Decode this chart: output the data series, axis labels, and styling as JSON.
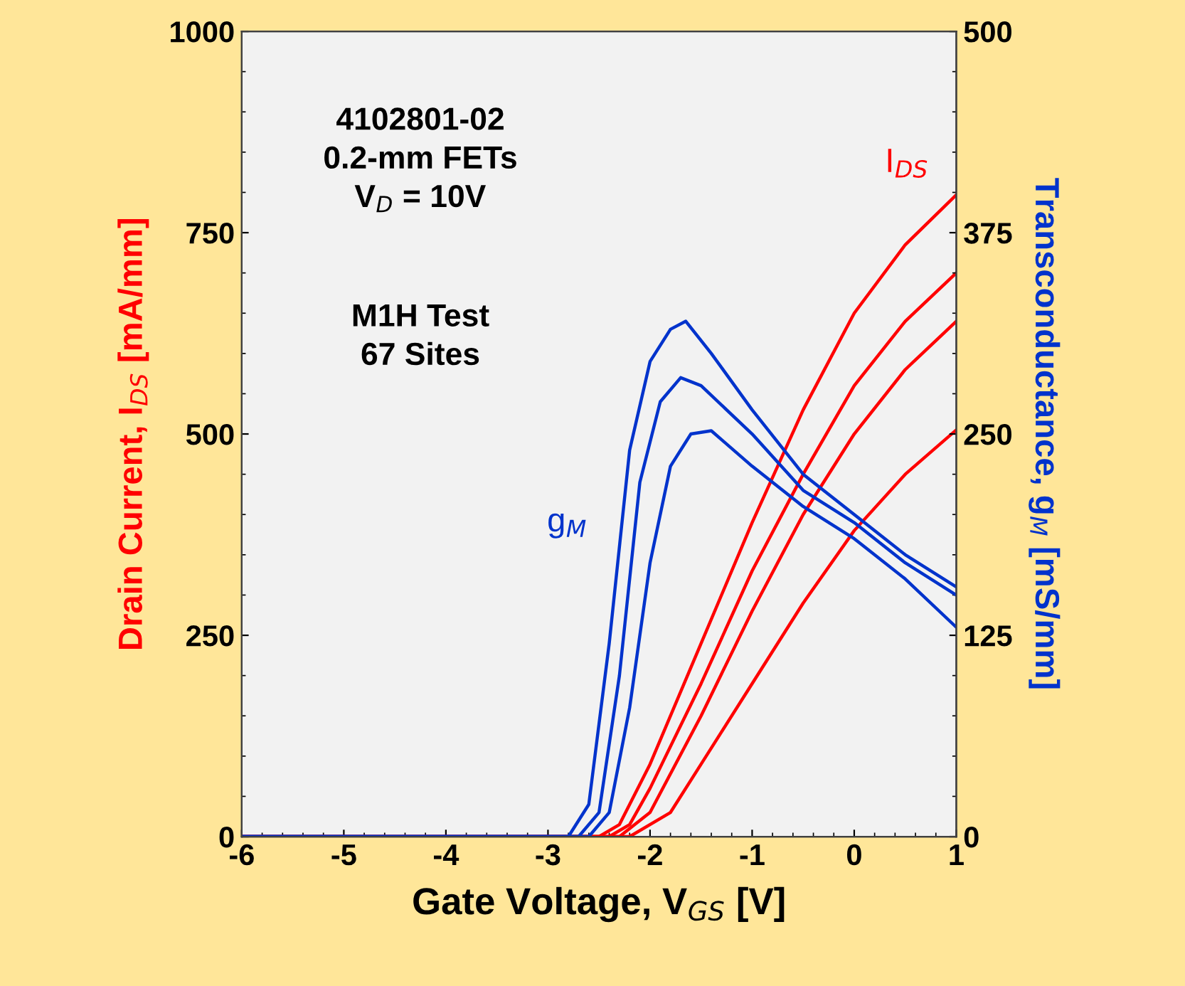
{
  "chart_data": {
    "type": "line",
    "xlabel": "Gate Voltage, V$_{GS}$ [V]",
    "ylabel": "Drain Current, I$_{DS}$ [mA/mm]",
    "y2label": "Transconductance, g$_{M}$ [mS/mm]",
    "annotations": [
      "4102801-02\n0.2-mm FETs\nV$_{D}$ = 10V",
      "M1H Test\n67 Sites"
    ],
    "xlim": [
      -6,
      1
    ],
    "xticks": [
      -6,
      -5,
      -4,
      -3,
      -2,
      -1,
      0,
      1
    ],
    "ylim": [
      0,
      1000
    ],
    "yticks": [
      0,
      250,
      500,
      750,
      1000
    ],
    "y2lim": [
      0,
      500
    ],
    "y2ticks": [
      0,
      125,
      250,
      375,
      500
    ],
    "grid": false,
    "legend": false,
    "marker": "none",
    "line_style": "solid",
    "series": [
      {
        "name": "I$_{DS}$",
        "color": "#ff0000",
        "x": [
          -6,
          -2.5,
          -2.3,
          -2,
          -1.5,
          -1,
          -0.5,
          0,
          0.5,
          1
        ],
        "values": [
          0,
          0,
          15,
          90,
          240,
          390,
          530,
          650,
          735,
          797
        ]
      },
      {
        "color": "#ff0000",
        "x": [
          -6,
          -2.4,
          -2.2,
          -2,
          -1.5,
          -1,
          -0.5,
          0,
          0.5,
          1
        ],
        "values": [
          0,
          0,
          15,
          60,
          190,
          330,
          450,
          560,
          640,
          700
        ]
      },
      {
        "color": "#ff0000",
        "x": [
          -6,
          -2.3,
          -2,
          -1.5,
          -1,
          -0.5,
          0,
          0.5,
          1
        ],
        "values": [
          0,
          0,
          30,
          150,
          280,
          400,
          500,
          580,
          640
        ]
      },
      {
        "color": "#ff0000",
        "x": [
          -6,
          -2.2,
          -1.8,
          -1.5,
          -1,
          -0.5,
          0,
          0.5,
          1
        ],
        "values": [
          0,
          0,
          30,
          90,
          190,
          290,
          380,
          450,
          505
        ]
      },
      {
        "name": "g$_{M}$",
        "color": "#0033cc",
        "axis": "y2",
        "x": [
          -6,
          -2.8,
          -2.6,
          -2.4,
          -2.2,
          -2,
          -1.8,
          -1.65,
          -1.4,
          -1,
          -0.5,
          0,
          0.5,
          1
        ],
        "values": [
          0,
          0,
          20,
          120,
          240,
          295,
          315,
          320,
          300,
          265,
          225,
          200,
          175,
          155
        ]
      },
      {
        "color": "#0033cc",
        "axis": "y2",
        "x": [
          -6,
          -2.7,
          -2.5,
          -2.3,
          -2.1,
          -1.9,
          -1.7,
          -1.5,
          -1,
          -0.5,
          0,
          0.5,
          1
        ],
        "values": [
          0,
          0,
          15,
          100,
          220,
          270,
          285,
          280,
          250,
          215,
          195,
          170,
          150
        ]
      },
      {
        "color": "#0033cc",
        "axis": "y2",
        "x": [
          -6,
          -2.6,
          -2.4,
          -2.2,
          -2,
          -1.8,
          -1.6,
          -1.4,
          -1,
          -0.5,
          0,
          0.5,
          1
        ],
        "values": [
          0,
          0,
          15,
          80,
          170,
          230,
          250,
          252,
          230,
          205,
          185,
          160,
          130
        ]
      }
    ]
  }
}
